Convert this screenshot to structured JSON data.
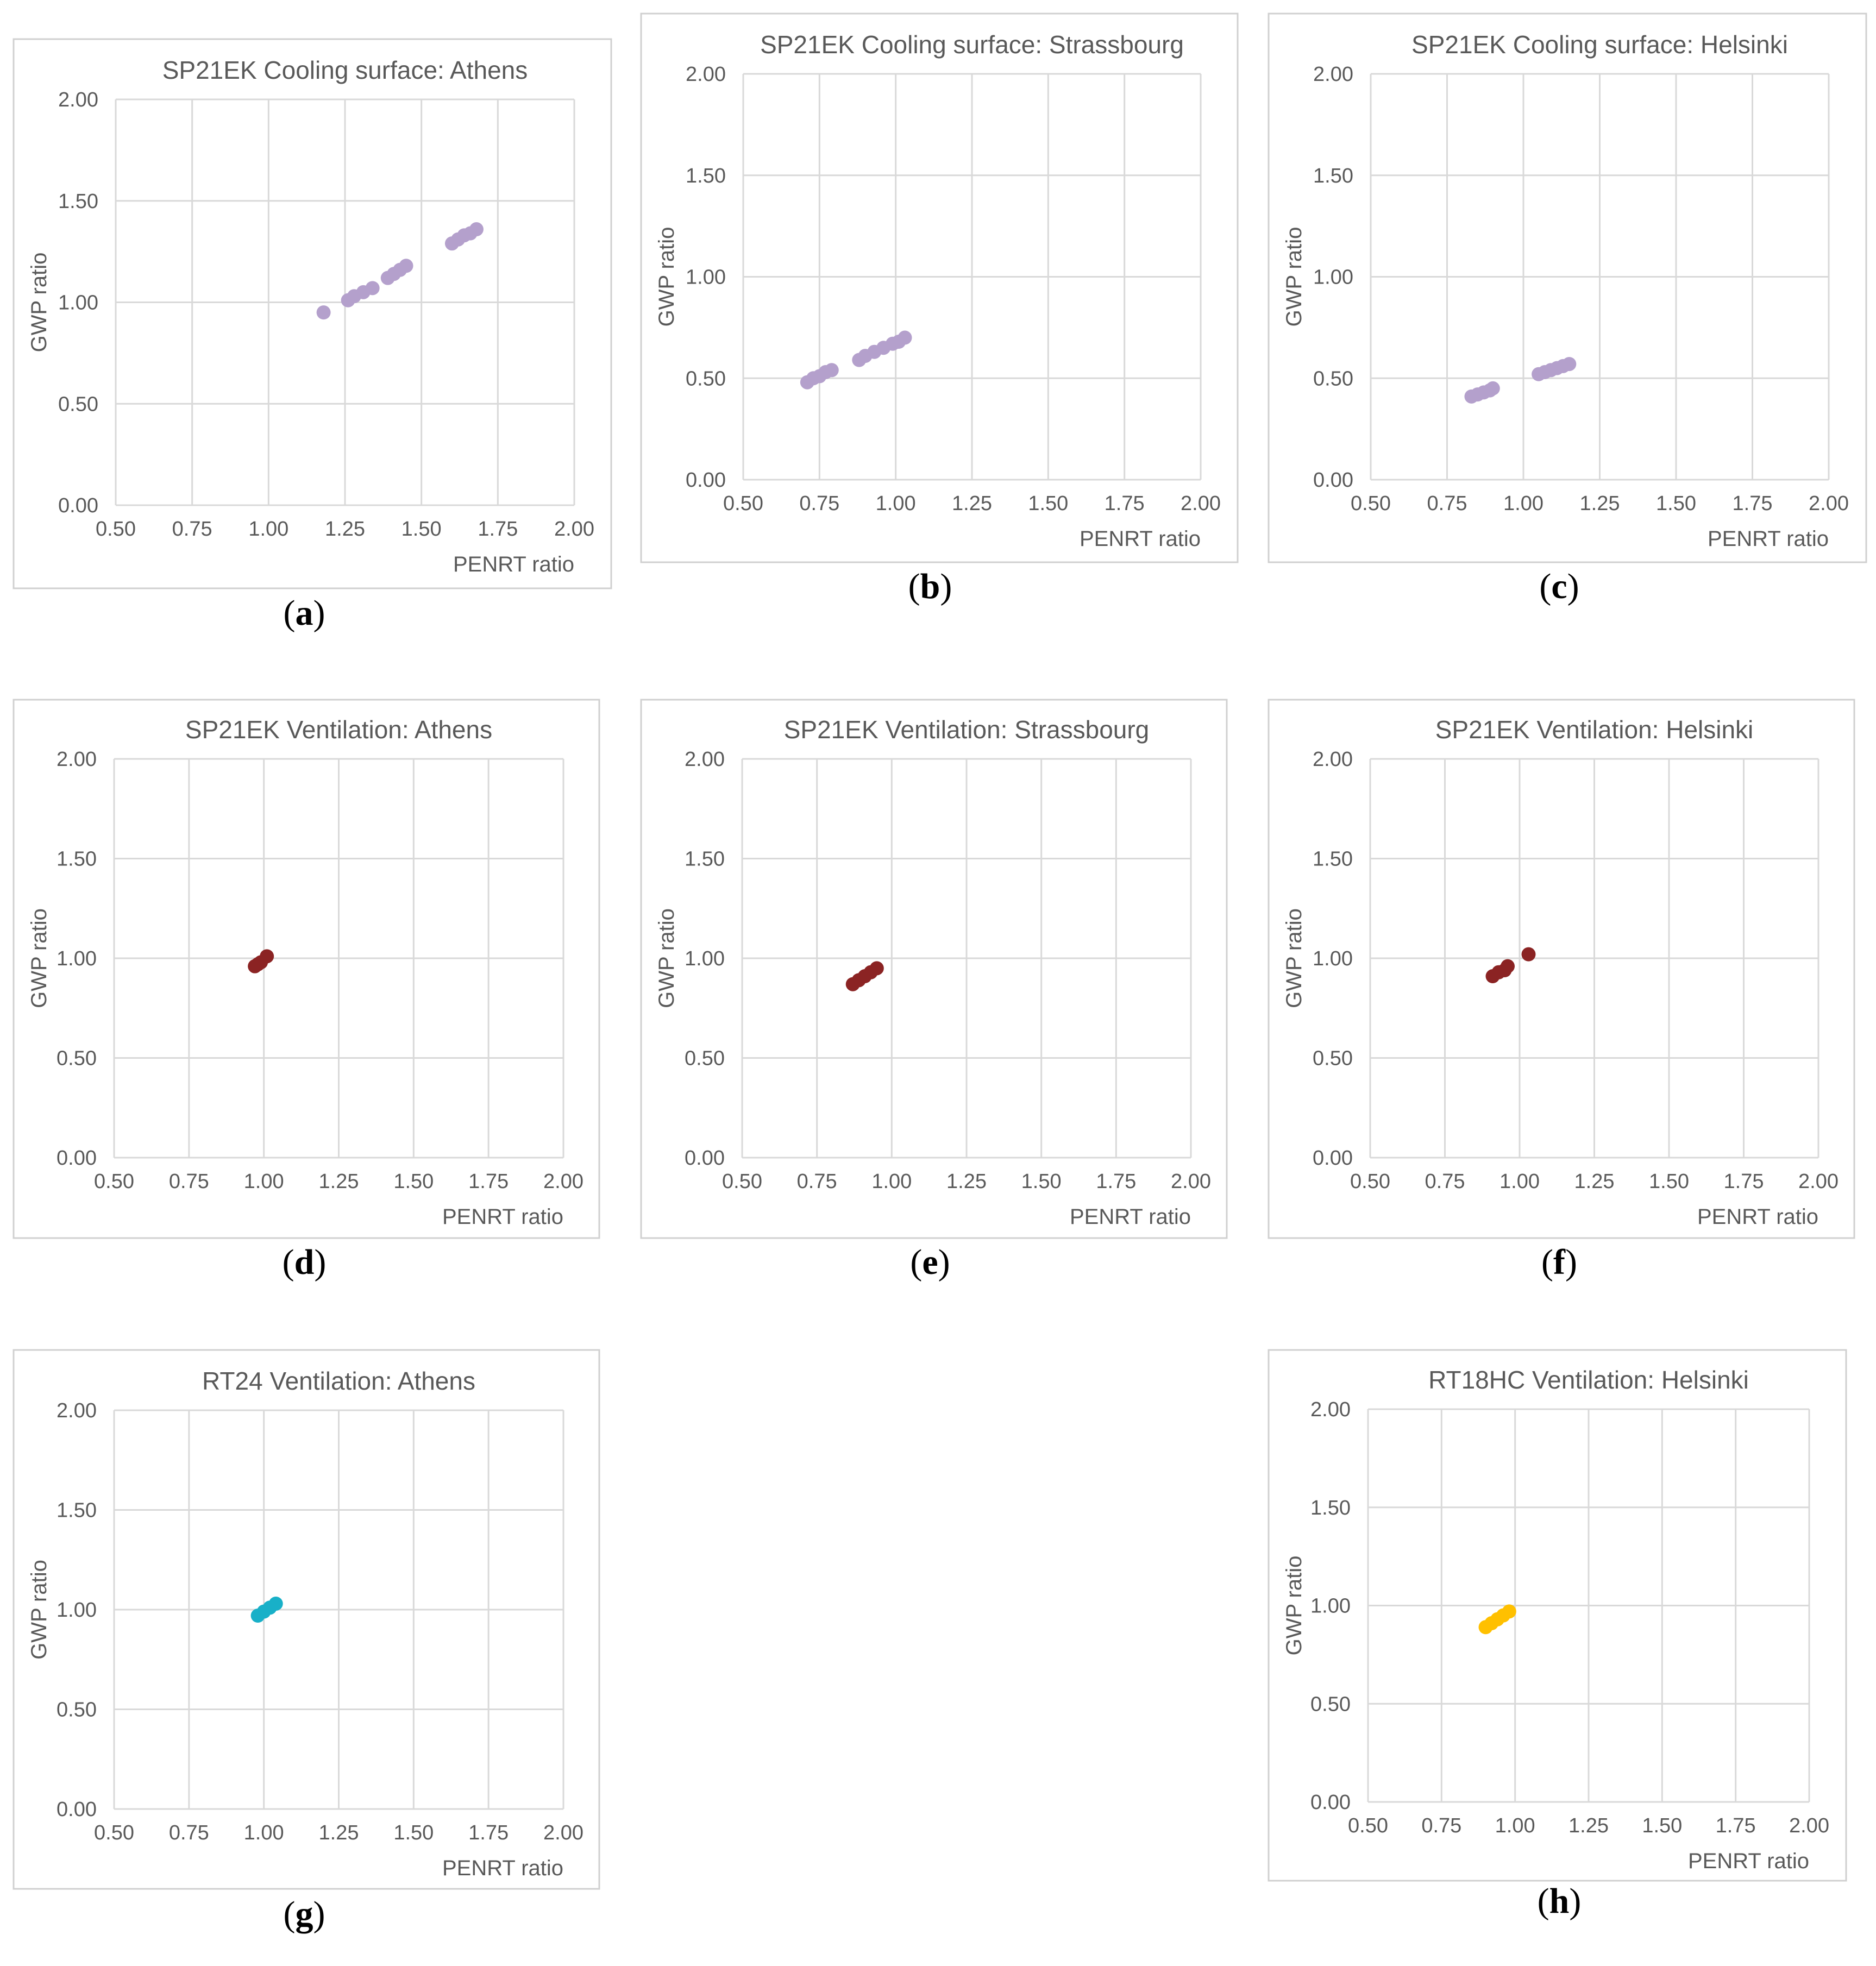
{
  "figure": {
    "grid_color": "#d9d9d9",
    "frame_color": "#d0d0d0",
    "text_color": "#595959"
  },
  "chart_data": [
    {
      "type": "scatter",
      "panel_label": "a",
      "title": "SP21EK Cooling surface: Athens",
      "xlabel": "PENRT ratio",
      "ylabel": "GWP ratio",
      "xlim": [
        0.5,
        2.0
      ],
      "ylim": [
        0.0,
        2.0
      ],
      "xticks": [
        "0.50",
        "0.75",
        "1.00",
        "1.25",
        "1.50",
        "1.75",
        "2.00"
      ],
      "yticks": [
        "0.00",
        "0.50",
        "1.00",
        "1.50",
        "2.00"
      ],
      "grid": true,
      "color": "#b4a0cc",
      "series": [
        {
          "name": "SP21EK Cooling surface",
          "points": [
            [
              1.18,
              0.95
            ],
            [
              1.26,
              1.01
            ],
            [
              1.28,
              1.03
            ],
            [
              1.31,
              1.05
            ],
            [
              1.34,
              1.07
            ],
            [
              1.39,
              1.12
            ],
            [
              1.41,
              1.14
            ],
            [
              1.43,
              1.16
            ],
            [
              1.45,
              1.18
            ],
            [
              1.6,
              1.29
            ],
            [
              1.62,
              1.31
            ],
            [
              1.64,
              1.33
            ],
            [
              1.66,
              1.34
            ],
            [
              1.68,
              1.36
            ]
          ]
        }
      ]
    },
    {
      "type": "scatter",
      "panel_label": "b",
      "title": "SP21EK Cooling surface: Strassbourg",
      "xlabel": "PENRT ratio",
      "ylabel": "GWP ratio",
      "xlim": [
        0.5,
        2.0
      ],
      "ylim": [
        0.0,
        2.0
      ],
      "xticks": [
        "0.50",
        "0.75",
        "1.00",
        "1.25",
        "1.50",
        "1.75",
        "2.00"
      ],
      "yticks": [
        "0.00",
        "0.50",
        "1.00",
        "1.50",
        "2.00"
      ],
      "grid": true,
      "color": "#b4a0cc",
      "series": [
        {
          "name": "SP21EK Cooling surface",
          "points": [
            [
              0.71,
              0.48
            ],
            [
              0.73,
              0.5
            ],
            [
              0.75,
              0.51
            ],
            [
              0.77,
              0.53
            ],
            [
              0.79,
              0.54
            ],
            [
              0.88,
              0.59
            ],
            [
              0.9,
              0.61
            ],
            [
              0.93,
              0.63
            ],
            [
              0.96,
              0.65
            ],
            [
              0.99,
              0.67
            ],
            [
              1.01,
              0.68
            ],
            [
              1.03,
              0.7
            ]
          ]
        }
      ]
    },
    {
      "type": "scatter",
      "panel_label": "c",
      "title": "SP21EK Cooling surface: Helsinki",
      "xlabel": "PENRT ratio",
      "ylabel": "GWP ratio",
      "xlim": [
        0.5,
        2.0
      ],
      "ylim": [
        0.0,
        2.0
      ],
      "xticks": [
        "0.50",
        "0.75",
        "1.00",
        "1.25",
        "1.50",
        "1.75",
        "2.00"
      ],
      "yticks": [
        "0.00",
        "0.50",
        "1.00",
        "1.50",
        "2.00"
      ],
      "grid": true,
      "color": "#b4a0cc",
      "series": [
        {
          "name": "SP21EK Cooling surface",
          "points": [
            [
              0.83,
              0.41
            ],
            [
              0.85,
              0.42
            ],
            [
              0.87,
              0.43
            ],
            [
              0.89,
              0.44
            ],
            [
              0.9,
              0.45
            ],
            [
              1.05,
              0.52
            ],
            [
              1.07,
              0.53
            ],
            [
              1.09,
              0.54
            ],
            [
              1.11,
              0.55
            ],
            [
              1.13,
              0.56
            ],
            [
              1.15,
              0.57
            ]
          ]
        }
      ]
    },
    {
      "type": "scatter",
      "panel_label": "d",
      "title": "SP21EK Ventilation:  Athens",
      "xlabel": "PENRT ratio",
      "ylabel": "GWP ratio",
      "xlim": [
        0.5,
        2.0
      ],
      "ylim": [
        0.0,
        2.0
      ],
      "xticks": [
        "0.50",
        "0.75",
        "1.00",
        "1.25",
        "1.50",
        "1.75",
        "2.00"
      ],
      "yticks": [
        "0.00",
        "0.50",
        "1.00",
        "1.50",
        "2.00"
      ],
      "grid": true,
      "color": "#8b2323",
      "series": [
        {
          "name": "SP21EK Ventilation",
          "points": [
            [
              0.97,
              0.96
            ],
            [
              0.98,
              0.97
            ],
            [
              0.99,
              0.98
            ],
            [
              1.01,
              1.01
            ]
          ]
        }
      ]
    },
    {
      "type": "scatter",
      "panel_label": "e",
      "title": "SP21EK Ventilation:  Strassbourg",
      "xlabel": "PENRT ratio",
      "ylabel": "GWP ratio",
      "xlim": [
        0.5,
        2.0
      ],
      "ylim": [
        0.0,
        2.0
      ],
      "xticks": [
        "0.50",
        "0.75",
        "1.00",
        "1.25",
        "1.50",
        "1.75",
        "2.00"
      ],
      "yticks": [
        "0.00",
        "0.50",
        "1.00",
        "1.50",
        "2.00"
      ],
      "grid": true,
      "color": "#8b2323",
      "series": [
        {
          "name": "SP21EK Ventilation",
          "points": [
            [
              0.87,
              0.87
            ],
            [
              0.89,
              0.89
            ],
            [
              0.91,
              0.91
            ],
            [
              0.93,
              0.93
            ],
            [
              0.95,
              0.95
            ]
          ]
        }
      ]
    },
    {
      "type": "scatter",
      "panel_label": "f",
      "title": "SP21EK Ventilation:  Helsinki",
      "xlabel": "PENRT ratio",
      "ylabel": "GWP ratio",
      "xlim": [
        0.5,
        2.0
      ],
      "ylim": [
        0.0,
        2.0
      ],
      "xticks": [
        "0.50",
        "0.75",
        "1.00",
        "1.25",
        "1.50",
        "1.75",
        "2.00"
      ],
      "yticks": [
        "0.00",
        "0.50",
        "1.00",
        "1.50",
        "2.00"
      ],
      "grid": true,
      "color": "#8b2323",
      "series": [
        {
          "name": "SP21EK Ventilation",
          "points": [
            [
              0.91,
              0.91
            ],
            [
              0.93,
              0.93
            ],
            [
              0.95,
              0.94
            ],
            [
              0.96,
              0.96
            ],
            [
              1.03,
              1.02
            ]
          ]
        }
      ]
    },
    {
      "type": "scatter",
      "panel_label": "g",
      "title": "RT24 Ventilation:  Athens",
      "xlabel": "PENRT ratio",
      "ylabel": "GWP ratio",
      "xlim": [
        0.5,
        2.0
      ],
      "ylim": [
        0.0,
        2.0
      ],
      "xticks": [
        "0.50",
        "0.75",
        "1.00",
        "1.25",
        "1.50",
        "1.75",
        "2.00"
      ],
      "yticks": [
        "0.00",
        "0.50",
        "1.00",
        "1.50",
        "2.00"
      ],
      "grid": true,
      "color": "#18b0c8",
      "series": [
        {
          "name": "RT24 Ventilation",
          "points": [
            [
              0.98,
              0.97
            ],
            [
              1.0,
              0.99
            ],
            [
              1.02,
              1.01
            ],
            [
              1.04,
              1.03
            ]
          ]
        }
      ]
    },
    {
      "type": "scatter",
      "panel_label": "h",
      "title": "RT18HC Ventilation: Helsinki",
      "xlabel": "PENRT ratio",
      "ylabel": "GWP ratio",
      "xlim": [
        0.5,
        2.0
      ],
      "ylim": [
        0.0,
        2.0
      ],
      "xticks": [
        "0.50",
        "0.75",
        "1.00",
        "1.25",
        "1.50",
        "1.75",
        "2.00"
      ],
      "yticks": [
        "0.00",
        "0.50",
        "1.00",
        "1.50",
        "2.00"
      ],
      "grid": true,
      "color": "#ffc000",
      "series": [
        {
          "name": "RT18HC Ventilation",
          "points": [
            [
              0.9,
              0.89
            ],
            [
              0.92,
              0.91
            ],
            [
              0.94,
              0.93
            ],
            [
              0.96,
              0.95
            ],
            [
              0.98,
              0.97
            ]
          ]
        }
      ]
    }
  ]
}
